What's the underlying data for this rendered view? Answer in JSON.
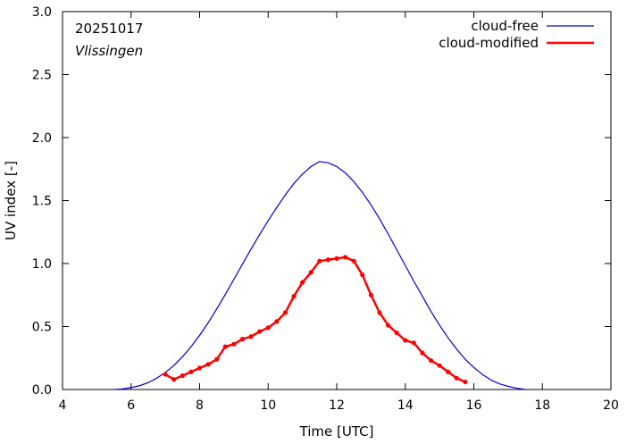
{
  "chart_data": {
    "type": "line",
    "title": "",
    "date_label": "20251017",
    "location_label": "Vlissingen",
    "xlabel": "Time  [UTC]",
    "ylabel": "UV index  [-]",
    "xlim": [
      4,
      20
    ],
    "ylim": [
      0,
      3.0
    ],
    "xticks": [
      4,
      6,
      8,
      10,
      12,
      14,
      16,
      18,
      20
    ],
    "yticks": [
      0.0,
      0.5,
      1.0,
      1.5,
      2.0,
      2.5,
      3.0
    ],
    "ytick_labels": [
      "0.0",
      "0.5",
      "1.0",
      "1.5",
      "2.0",
      "2.5",
      "3.0"
    ],
    "legend": {
      "placement": "top-right"
    },
    "series": [
      {
        "name": "cloud-free",
        "color": "#0000cc",
        "style": "line",
        "peak_time": 11.5,
        "peak_value": 1.81,
        "x": [
          5.5,
          5.75,
          6.0,
          6.25,
          6.5,
          6.75,
          7.0,
          7.25,
          7.5,
          7.75,
          8.0,
          8.25,
          8.5,
          8.75,
          9.0,
          9.25,
          9.5,
          9.75,
          10.0,
          10.25,
          10.5,
          10.75,
          11.0,
          11.25,
          11.5,
          11.75,
          12.0,
          12.25,
          12.5,
          12.75,
          13.0,
          13.25,
          13.5,
          13.75,
          14.0,
          14.25,
          14.5,
          14.75,
          15.0,
          15.25,
          15.5,
          15.75,
          16.0,
          16.25,
          16.5,
          16.75,
          17.0,
          17.25,
          17.5
        ],
        "values": [
          0.0,
          0.005,
          0.015,
          0.03,
          0.055,
          0.09,
          0.135,
          0.19,
          0.26,
          0.34,
          0.43,
          0.53,
          0.64,
          0.755,
          0.875,
          0.995,
          1.115,
          1.23,
          1.34,
          1.445,
          1.545,
          1.635,
          1.71,
          1.77,
          1.81,
          1.8,
          1.77,
          1.72,
          1.65,
          1.565,
          1.465,
          1.355,
          1.235,
          1.11,
          0.985,
          0.86,
          0.74,
          0.62,
          0.51,
          0.41,
          0.32,
          0.24,
          0.175,
          0.12,
          0.075,
          0.045,
          0.025,
          0.01,
          0.0
        ]
      },
      {
        "name": "cloud-modified",
        "color": "#ff0000",
        "style": "line-points",
        "x": [
          7.0,
          7.25,
          7.5,
          7.75,
          8.0,
          8.25,
          8.5,
          8.75,
          9.0,
          9.25,
          9.5,
          9.75,
          10.0,
          10.25,
          10.5,
          10.75,
          11.0,
          11.25,
          11.5,
          11.75,
          12.0,
          12.25,
          12.5,
          12.75,
          13.0,
          13.25,
          13.5,
          13.75,
          14.0,
          14.25,
          14.5,
          14.75,
          15.0,
          15.25,
          15.5,
          15.75
        ],
        "values": [
          0.12,
          0.08,
          0.11,
          0.14,
          0.17,
          0.2,
          0.24,
          0.34,
          0.36,
          0.4,
          0.42,
          0.46,
          0.49,
          0.54,
          0.61,
          0.74,
          0.85,
          0.93,
          1.02,
          1.03,
          1.04,
          1.05,
          1.02,
          0.91,
          0.75,
          0.61,
          0.51,
          0.45,
          0.39,
          0.37,
          0.29,
          0.23,
          0.19,
          0.14,
          0.09,
          0.06
        ]
      }
    ]
  }
}
